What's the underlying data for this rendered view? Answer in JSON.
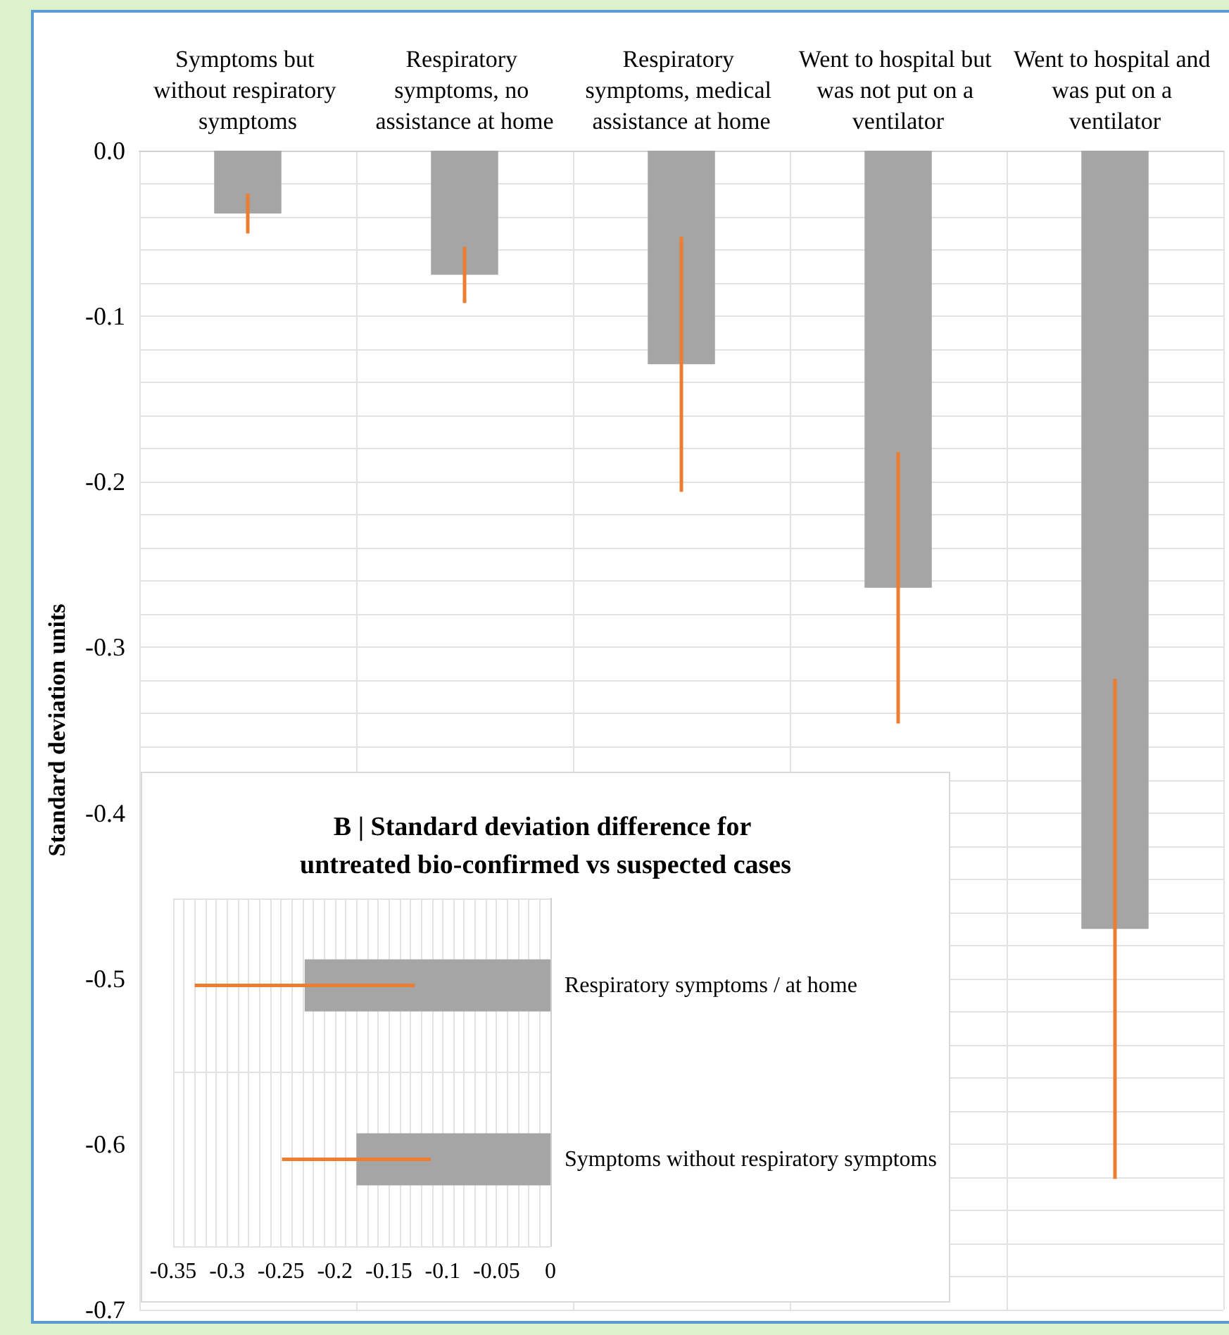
{
  "chart_data": [
    {
      "type": "bar",
      "categories": [
        "Symptoms but without respiratory symptoms",
        "Respiratory symptoms, no assistance at home",
        "Respiratory symptoms, medical assistance at home",
        "Went to hospital but was not put on a ventilator",
        "Went to hospital and was put on a ventilator"
      ],
      "values": [
        -0.038,
        -0.075,
        -0.129,
        -0.264,
        -0.47
      ],
      "errors": [
        0.012,
        0.017,
        0.077,
        0.082,
        0.151
      ],
      "color": "#a5a5a5",
      "ylabel": "Standard deviation units",
      "ylim": [
        -0.7,
        0
      ],
      "yticks": [
        {
          "value": 0,
          "label": "0.0"
        },
        -0.1,
        -0.2,
        -0.3,
        -0.4,
        -0.5,
        -0.6,
        -0.7
      ],
      "grid": true
    },
    {
      "type": "bar",
      "orientation": "horizontal",
      "title": "B | Standard deviation difference for untreated bio-confirmed vs suspected cases",
      "categories": [
        "Respiratory symptoms / at home",
        "Symptoms without respiratory symptoms"
      ],
      "values": [
        -0.228,
        -0.18
      ],
      "errors": [
        0.102,
        0.069
      ],
      "color": "#a5a5a5",
      "xlim": [
        -0.35,
        0
      ],
      "xticks": [
        -0.35,
        -0.3,
        -0.25,
        -0.2,
        -0.15,
        -0.1,
        -0.05,
        0
      ],
      "grid": true
    }
  ]
}
